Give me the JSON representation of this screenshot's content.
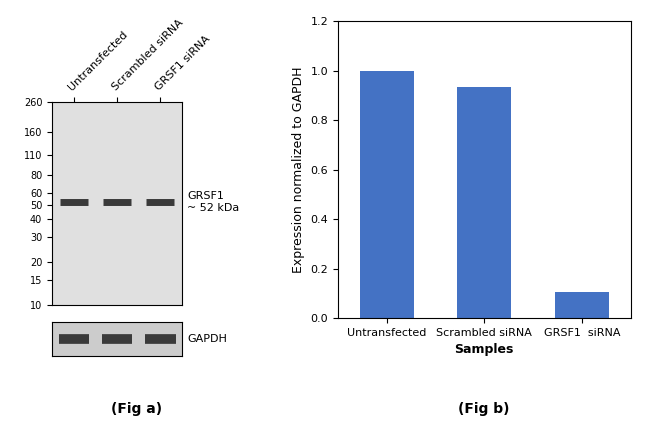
{
  "chart_data": [
    {
      "type": "blot",
      "title": "(Fig a)",
      "categories": [
        "Untransfected",
        "Scrambled siRNA",
        "GRSF1 siRNA"
      ],
      "series": [
        {
          "name": "GRSF1\n~ 52 kDa",
          "color": "#3a3a3a",
          "values": [
            52,
            52,
            52
          ]
        }
      ],
      "log": "y",
      "ylim": [
        10,
        260
      ],
      "yticks": [
        260,
        160,
        110,
        80,
        60,
        50,
        40,
        30,
        20,
        15,
        10
      ],
      "annotations": [
        "GAPDH"
      ]
    },
    {
      "type": "bar",
      "title": "(Fig b)",
      "categories": [
        "Untransfected",
        "Scrambled siRNA",
        "GRSF1  siRNA"
      ],
      "values": [
        1.0,
        0.935,
        0.105
      ],
      "color": "#4472c4",
      "x_label": "Samples",
      "y_label": "Expression normalized to GAPDH",
      "ylim": [
        0.0,
        1.2
      ],
      "yticks": [
        0.0,
        0.2,
        0.4,
        0.6,
        0.8,
        1.0,
        1.2
      ]
    }
  ]
}
